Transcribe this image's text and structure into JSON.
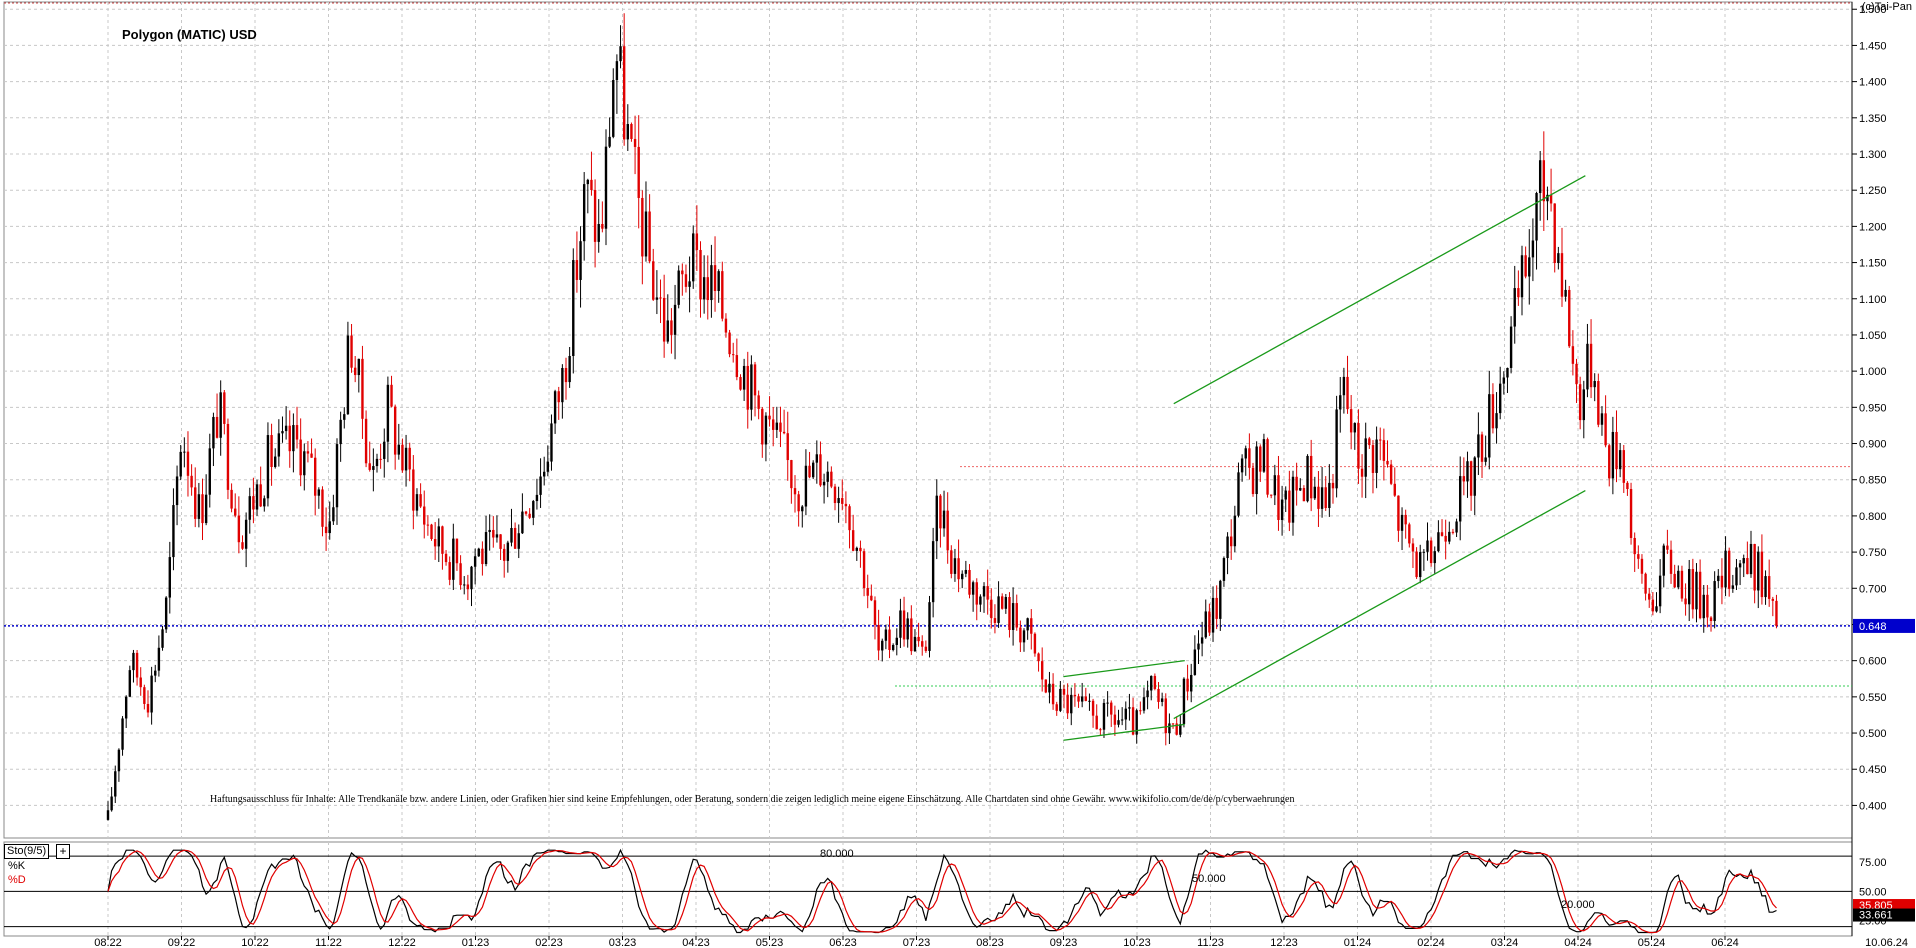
{
  "header": {
    "title": "Polygon (MATIC) USD",
    "copyright": "(c)Tai-Pan"
  },
  "disclaimer": "Haftungsausschluss für Inhalte: Alle Trendkanäle bzw. andere Linien, oder Grafiken hier sind keine Empfehlungen, oder Beratung, sondern die zeigen lediglich meine eigene Einschätzung. Alle Chartdaten sind ohne Gewähr. www.wikifolio.com/de/de/p/cyberwaehrungen",
  "indicator": {
    "name": "Sto(9/5)",
    "expand_label": "+",
    "k_label": "%K",
    "d_label": "%D",
    "upper_level": "80.000",
    "mid_level": "50.000",
    "lower_level": "20.000",
    "k_value": "33.661",
    "d_value": "35.805",
    "y_ticks": [
      "75.00",
      "50.00",
      "25.00"
    ]
  },
  "colors": {
    "bull": "#000000",
    "bear": "#e00000",
    "trendline": "#1a9a1a",
    "current_price_line": "#0000cc",
    "support_line": "#33cc55",
    "resistance_line": "#ee6666",
    "grid": "#c8c8c8"
  },
  "chart_data": {
    "type": "candlestick",
    "title": "Polygon (MATIC) USD",
    "ylim": [
      0.355,
      1.51
    ],
    "y_ticks": [
      0.4,
      0.45,
      0.5,
      0.55,
      0.6,
      0.65,
      0.7,
      0.75,
      0.8,
      0.85,
      0.9,
      0.95,
      1.0,
      1.05,
      1.1,
      1.15,
      1.2,
      1.25,
      1.3,
      1.35,
      1.4,
      1.45,
      1.5
    ],
    "y_tick_labels": [
      "0.400",
      "0.450",
      "0.500",
      "0.550",
      "0.600",
      "0.650",
      "0.700",
      "0.750",
      "0.800",
      "0.850",
      "0.900",
      "0.950",
      "1.000",
      "1.050",
      "1.100",
      "1.150",
      "1.200",
      "1.250",
      "1.300",
      "1.350",
      "1.400",
      "1.450",
      "1.500"
    ],
    "x_labels": [
      "08.22",
      "09.22",
      "10.22",
      "11.22",
      "12.22",
      "01.23",
      "02.23",
      "03.23",
      "04.23",
      "05.23",
      "06.23",
      "07.23",
      "08.23",
      "09.23",
      "10.23",
      "11.23",
      "12.23",
      "01.24",
      "02.24",
      "03.24",
      "04.24",
      "05.24",
      "06.24"
    ],
    "last_date_label": "10.06.24",
    "current_price": 0.648,
    "current_price_label": "0.648",
    "horizontal_lines": {
      "resistance": 0.868,
      "support": 0.565
    },
    "price_path": [
      [
        0.0,
        0.38
      ],
      [
        0.3,
        0.6
      ],
      [
        0.55,
        0.55
      ],
      [
        0.8,
        0.68
      ],
      [
        1.0,
        0.92
      ],
      [
        1.25,
        0.8
      ],
      [
        1.5,
        0.95
      ],
      [
        1.8,
        0.78
      ],
      [
        2.2,
        0.88
      ],
      [
        2.6,
        0.9
      ],
      [
        2.9,
        0.82
      ],
      [
        3.0,
        0.78
      ],
      [
        3.3,
        1.05
      ],
      [
        3.6,
        0.85
      ],
      [
        3.8,
        0.95
      ],
      [
        4.0,
        0.88
      ],
      [
        4.3,
        0.8
      ],
      [
        4.5,
        0.76
      ],
      [
        4.9,
        0.72
      ],
      [
        5.0,
        0.75
      ],
      [
        5.4,
        0.75
      ],
      [
        5.6,
        0.8
      ],
      [
        5.9,
        0.86
      ],
      [
        6.2,
        1.0
      ],
      [
        6.5,
        1.25
      ],
      [
        6.7,
        1.18
      ],
      [
        6.9,
        1.45
      ],
      [
        7.1,
        1.3
      ],
      [
        7.3,
        1.18
      ],
      [
        7.6,
        1.05
      ],
      [
        7.9,
        1.15
      ],
      [
        8.2,
        1.12
      ],
      [
        8.5,
        1.05
      ],
      [
        8.8,
        0.96
      ],
      [
        9.1,
        0.9
      ],
      [
        9.4,
        0.84
      ],
      [
        9.7,
        0.87
      ],
      [
        10.0,
        0.84
      ],
      [
        10.3,
        0.72
      ],
      [
        10.5,
        0.6
      ],
      [
        10.8,
        0.66
      ],
      [
        11.1,
        0.6
      ],
      [
        11.3,
        0.82
      ],
      [
        11.5,
        0.74
      ],
      [
        11.8,
        0.7
      ],
      [
        12.1,
        0.68
      ],
      [
        12.5,
        0.64
      ],
      [
        12.8,
        0.55
      ],
      [
        13.1,
        0.54
      ],
      [
        13.4,
        0.52
      ],
      [
        13.7,
        0.52
      ],
      [
        14.0,
        0.51
      ],
      [
        14.2,
        0.56
      ],
      [
        14.5,
        0.5
      ],
      [
        14.8,
        0.62
      ],
      [
        15.1,
        0.68
      ],
      [
        15.4,
        0.85
      ],
      [
        15.7,
        0.88
      ],
      [
        16.0,
        0.8
      ],
      [
        16.3,
        0.86
      ],
      [
        16.6,
        0.82
      ],
      [
        16.8,
        0.98
      ],
      [
        17.0,
        0.88
      ],
      [
        17.3,
        0.9
      ],
      [
        17.6,
        0.78
      ],
      [
        17.9,
        0.72
      ],
      [
        18.2,
        0.8
      ],
      [
        18.5,
        0.84
      ],
      [
        18.8,
        0.94
      ],
      [
        19.1,
        1.05
      ],
      [
        19.3,
        1.15
      ],
      [
        19.5,
        1.25
      ],
      [
        19.6,
        1.26
      ],
      [
        19.8,
        1.12
      ],
      [
        20.0,
        0.96
      ],
      [
        20.2,
        1.02
      ],
      [
        20.4,
        0.88
      ],
      [
        20.6,
        0.9
      ],
      [
        20.8,
        0.72
      ],
      [
        21.0,
        0.68
      ],
      [
        21.2,
        0.74
      ],
      [
        21.5,
        0.7
      ],
      [
        21.8,
        0.68
      ],
      [
        22.0,
        0.72
      ],
      [
        22.2,
        0.74
      ],
      [
        22.5,
        0.72
      ],
      [
        22.7,
        0.648
      ]
    ],
    "trendlines": [
      {
        "from": [
          14.5,
          0.955
        ],
        "to": [
          20.1,
          1.27
        ]
      },
      {
        "from": [
          14.5,
          0.52
        ],
        "to": [
          20.1,
          0.835
        ]
      },
      {
        "from": [
          13.0,
          0.578
        ],
        "to": [
          14.65,
          0.6
        ]
      },
      {
        "from": [
          13.0,
          0.49
        ],
        "to": [
          14.65,
          0.512
        ]
      }
    ],
    "stochastic": {
      "ylim": [
        12,
        92
      ],
      "levels": [
        80,
        50,
        20
      ],
      "k_last": 33.661,
      "d_last": 35.805
    }
  }
}
